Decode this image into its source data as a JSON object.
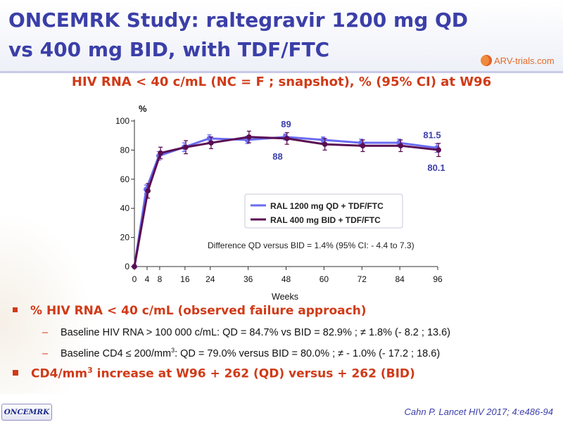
{
  "slide": {
    "title_line1": "ONCEMRK Study: raltegravir 1200 mg QD",
    "title_line2": "vs 400 mg BID, with TDF/FTC",
    "logo_text": "ARV-trials.com",
    "subtitle": "HIV RNA < 40 c/mL (NC = F ; snapshot), % (95% CI) at W96",
    "footer_badge": "ONCEMRK",
    "citation": "Cahn P. Lancet HIV 2017; 4:e486-94",
    "colors": {
      "title": "#3b3fa8",
      "accent": "#d03a17",
      "qd": "#6a6cf0",
      "bid": "#5a0e52"
    }
  },
  "chart_data": {
    "type": "line",
    "ylabel": "%",
    "xlabel": "Weeks",
    "ylim": [
      0,
      100
    ],
    "xlim": [
      0,
      96
    ],
    "x": [
      0,
      4,
      8,
      16,
      24,
      36,
      48,
      60,
      72,
      84,
      96
    ],
    "x_ticks": [
      "0",
      "4",
      "8",
      "16",
      "24",
      "36",
      "48",
      "60",
      "72",
      "84",
      "96"
    ],
    "y_ticks": [
      "0",
      "20",
      "40",
      "60",
      "80",
      "100"
    ],
    "grid": false,
    "legend_position": "center-right",
    "series": [
      {
        "name": "RAL 1200 mg QD + TDF/FTC",
        "color": "#6a6cf0",
        "values": [
          0,
          53,
          76,
          82,
          88,
          87,
          89,
          87,
          85,
          85,
          81.5
        ],
        "ci_half": [
          0,
          3,
          3,
          3,
          2.5,
          2.5,
          2,
          2,
          2.5,
          2.5,
          3
        ]
      },
      {
        "name": "RAL 400 mg BID + TDF/FTC",
        "color": "#5a0e52",
        "values": [
          0,
          52,
          78,
          82,
          85,
          89,
          88,
          84,
          83,
          83,
          80.1
        ],
        "ci_half": [
          0,
          5,
          4,
          4.5,
          4,
          4,
          4,
          4,
          4,
          4,
          4.5
        ]
      }
    ],
    "data_labels": [
      "89",
      "88",
      "81.5",
      "80.1"
    ],
    "annotation": "Difference QD versus BID = 1.4% (95% CI: - 4.4 to 7.3)"
  },
  "bullets": {
    "b1": "% HIV RNA < 40 c/mL (observed failure approach)",
    "sub1": "Baseline HIV RNA > 100 000 c/mL: QD = 84.7% vs BID = 82.9% ; ≠ 1.8% (- 8.2 ; 13.6)",
    "sub2_pre": "Baseline CD4 ≤ 200/mm",
    "sub2_sup": "3",
    "sub2_post": ": QD = 79.0% versus BID = 80.0% ; ≠ - 1.0% (- 17.2 ; 18.6)",
    "b2_pre": "CD4/mm",
    "b2_sup": "3",
    "b2_post": " increase at W96 + 262 (QD) versus + 262 (BID)",
    "dash": "–"
  }
}
